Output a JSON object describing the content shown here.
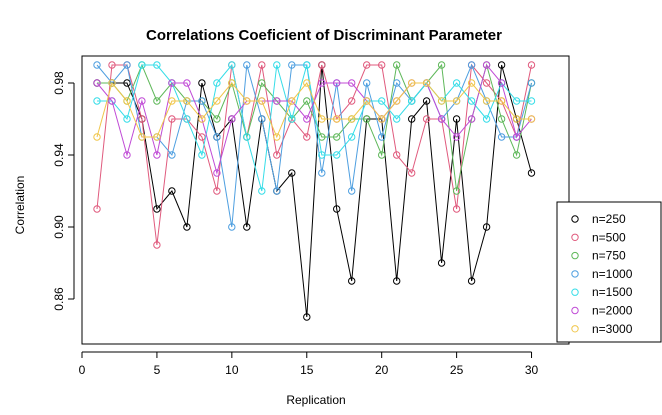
{
  "chart_data": {
    "type": "line",
    "title": "Correlations Coeficient of Discriminant Parameter",
    "xlabel": "Replication",
    "ylabel": "Correlation",
    "xlim": [
      0,
      32.5
    ],
    "ylim": [
      0.835,
      0.995
    ],
    "xticks": [
      0,
      5,
      10,
      15,
      20,
      25,
      30
    ],
    "yticks": [
      0.86,
      0.9,
      0.94,
      0.98
    ],
    "ytick_labels": [
      "0.86",
      "0.90",
      "0.94",
      "0.98"
    ],
    "legend_position": "bottom-right",
    "x": [
      1,
      2,
      3,
      4,
      5,
      6,
      7,
      8,
      9,
      10,
      11,
      12,
      13,
      14,
      15,
      16,
      17,
      18,
      19,
      20,
      21,
      22,
      23,
      24,
      25,
      26,
      27,
      28,
      29,
      30
    ],
    "series": [
      {
        "name": "n=250",
        "color": "#000000",
        "values": [
          0.98,
          0.98,
          0.98,
          0.96,
          0.91,
          0.92,
          0.9,
          0.98,
          0.95,
          0.96,
          0.9,
          0.96,
          0.92,
          0.93,
          0.85,
          0.99,
          0.91,
          0.87,
          0.96,
          0.96,
          0.87,
          0.96,
          0.97,
          0.88,
          0.96,
          0.87,
          0.9,
          0.99,
          0.96,
          0.93
        ]
      },
      {
        "name": "n=500",
        "color": "#E05A7D",
        "values": [
          0.91,
          0.99,
          0.99,
          0.96,
          0.89,
          0.96,
          0.96,
          0.95,
          0.92,
          0.99,
          0.95,
          0.99,
          0.94,
          0.96,
          0.95,
          0.99,
          0.96,
          0.97,
          0.99,
          0.99,
          0.94,
          0.93,
          0.96,
          0.96,
          0.91,
          0.99,
          0.98,
          0.97,
          0.95,
          0.99
        ]
      },
      {
        "name": "n=750",
        "color": "#5FB85A",
        "values": [
          0.98,
          0.98,
          0.97,
          0.99,
          0.97,
          0.98,
          0.97,
          0.97,
          0.96,
          0.98,
          0.95,
          0.98,
          0.97,
          0.96,
          0.97,
          0.95,
          0.95,
          0.96,
          0.96,
          0.94,
          0.99,
          0.97,
          0.98,
          0.99,
          0.92,
          0.96,
          0.99,
          0.96,
          0.94,
          0.98
        ]
      },
      {
        "name": "n=1000",
        "color": "#4E9FE0",
        "values": [
          0.99,
          0.98,
          0.99,
          0.95,
          0.95,
          0.94,
          0.97,
          0.97,
          0.95,
          0.9,
          0.99,
          0.96,
          0.92,
          0.99,
          0.99,
          0.93,
          0.98,
          0.92,
          0.98,
          0.95,
          0.98,
          0.97,
          0.98,
          0.96,
          0.97,
          0.99,
          0.97,
          0.95,
          0.95,
          0.98
        ]
      },
      {
        "name": "n=1500",
        "color": "#35DDE8",
        "values": [
          0.97,
          0.97,
          0.96,
          0.99,
          0.99,
          0.98,
          0.96,
          0.94,
          0.98,
          0.99,
          0.95,
          0.92,
          0.99,
          0.96,
          0.99,
          0.94,
          0.94,
          0.95,
          0.97,
          0.97,
          0.96,
          0.97,
          0.98,
          0.97,
          0.98,
          0.97,
          0.96,
          0.98,
          0.97,
          0.97
        ]
      },
      {
        "name": "n=2000",
        "color": "#C04BD6",
        "values": [
          0.98,
          0.97,
          0.94,
          0.97,
          0.94,
          0.98,
          0.98,
          0.96,
          0.93,
          0.96,
          0.97,
          0.97,
          0.97,
          0.97,
          0.96,
          0.98,
          0.98,
          0.98,
          0.97,
          0.96,
          0.97,
          0.98,
          0.98,
          0.96,
          0.95,
          0.96,
          0.99,
          0.98,
          0.95,
          0.96
        ]
      },
      {
        "name": "n=3000",
        "color": "#F0C64A",
        "values": [
          0.95,
          0.98,
          0.97,
          0.95,
          0.95,
          0.97,
          0.97,
          0.96,
          0.97,
          0.98,
          0.97,
          0.97,
          0.95,
          0.97,
          0.98,
          0.96,
          0.96,
          0.96,
          0.97,
          0.96,
          0.97,
          0.98,
          0.98,
          0.97,
          0.97,
          0.98,
          0.97,
          0.97,
          0.96,
          0.96
        ]
      }
    ]
  }
}
